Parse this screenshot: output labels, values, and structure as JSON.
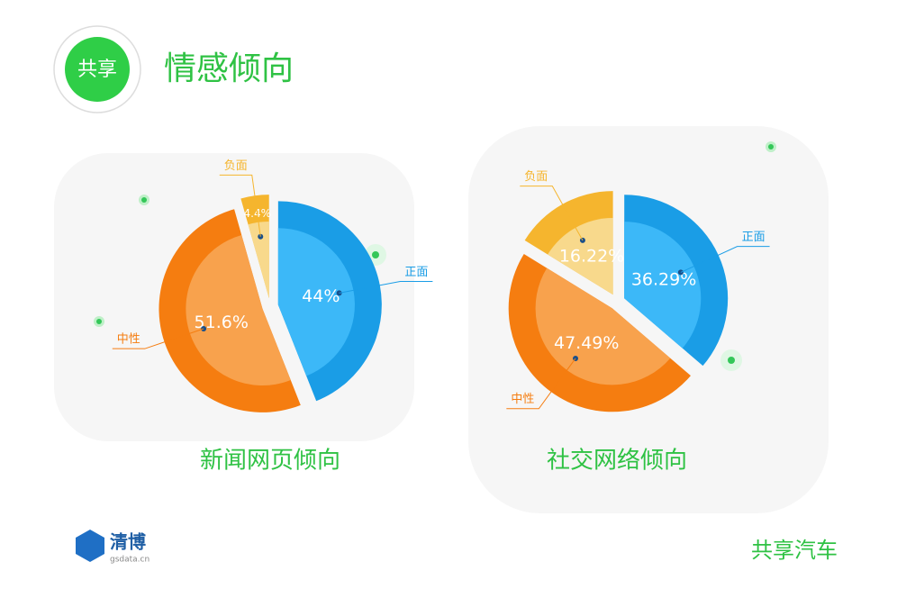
{
  "header": {
    "badge": "共享",
    "title": "情感倾向"
  },
  "chart_data": [
    {
      "type": "pie",
      "title": "新闻网页倾向",
      "categories": [
        "正面",
        "中性",
        "负面"
      ],
      "values": [
        44,
        51.6,
        4.4
      ],
      "value_labels": [
        "44%",
        "51.6%",
        "4.4%"
      ],
      "colors": [
        "#1a9de6",
        "#f57d10",
        "#f5b52e"
      ],
      "inner_colors": [
        "#3cb8f8",
        "#f8a24d",
        "#f8d98c"
      ]
    },
    {
      "type": "pie",
      "title": "社交网络倾向",
      "categories": [
        "正面",
        "中性",
        "负面"
      ],
      "values": [
        36.29,
        47.49,
        16.22
      ],
      "value_labels": [
        "36.29%",
        "47.49%",
        "16.22%"
      ],
      "colors": [
        "#1a9de6",
        "#f57d10",
        "#f5b52e"
      ],
      "inner_colors": [
        "#3cb8f8",
        "#f8a24d",
        "#f8d98c"
      ]
    }
  ],
  "footer": {
    "logo": "清博",
    "site": "gsdata.cn",
    "brand": "共享汽车"
  }
}
